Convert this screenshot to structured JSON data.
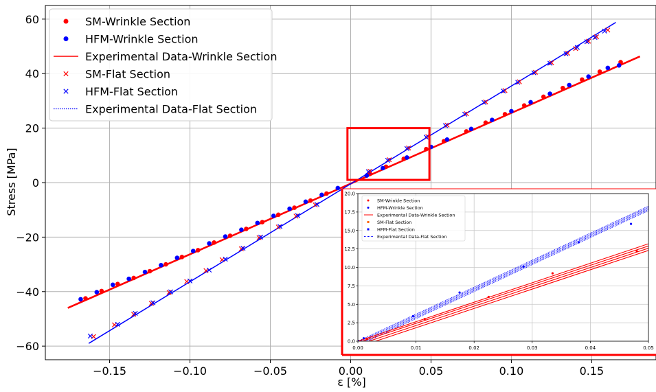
{
  "chart_data": [
    {
      "type": "scatter",
      "title": "",
      "xlabel": "ε [%]",
      "ylabel": "Stress [MPa]",
      "xlim": [
        -0.19,
        0.19
      ],
      "ylim": [
        -65,
        65
      ],
      "xticks": [
        -0.15,
        -0.1,
        -0.05,
        0.0,
        0.05,
        0.1,
        0.15
      ],
      "xtick_labels": [
        "−0.15",
        "−0.10",
        "−0.05",
        "0.00",
        "0.05",
        "0.10",
        "0.15"
      ],
      "yticks": [
        -60,
        -40,
        -20,
        0,
        20,
        40,
        60
      ],
      "ytick_labels": [
        "−60",
        "−40",
        "−20",
        "0",
        "20",
        "40",
        "60"
      ],
      "grid": true,
      "legend_position": "top-left",
      "legend": [
        "SM-Wrinkle Section",
        "HFM-Wrinkle Section",
        "Experimental Data-Wrinkle Section",
        "SM-Flat Section",
        "HFM-Flat Section",
        "Experimental Data-Flat Section"
      ],
      "colors": {
        "red": "#ff0000",
        "blue": "#0000ff",
        "grid": "#b0b0b0",
        "zoom_box": "#ff0000"
      },
      "series": [
        {
          "name": "SM-Wrinkle Section",
          "marker": "dot",
          "color": "#ff0000",
          "x": [
            -0.165,
            -0.155,
            -0.145,
            -0.135,
            -0.125,
            -0.115,
            -0.105,
            -0.095,
            -0.085,
            -0.075,
            -0.065,
            -0.055,
            -0.045,
            -0.035,
            -0.025,
            -0.015,
            0.012,
            0.022,
            0.033,
            0.047,
            0.058,
            0.072,
            0.084,
            0.096,
            0.108,
            0.12,
            0.132,
            0.144,
            0.155,
            0.168
          ],
          "y": [
            -42.5,
            -39.8,
            -37.2,
            -35.0,
            -32.5,
            -30.0,
            -27.3,
            -24.8,
            -22.0,
            -19.5,
            -17.0,
            -14.5,
            -11.8,
            -9.2,
            -6.6,
            -4.0,
            3.2,
            5.8,
            8.7,
            12.3,
            15.2,
            18.8,
            22.0,
            25.1,
            28.3,
            31.5,
            34.7,
            37.8,
            40.7,
            44.2
          ]
        },
        {
          "name": "HFM-Wrinkle Section",
          "marker": "dot",
          "color": "#0000ff",
          "x": [
            -0.168,
            -0.158,
            -0.148,
            -0.138,
            -0.128,
            -0.118,
            -0.108,
            -0.098,
            -0.088,
            -0.078,
            -0.068,
            -0.058,
            -0.048,
            -0.038,
            -0.028,
            -0.018,
            -0.008,
            0.01,
            0.02,
            0.035,
            0.05,
            0.06,
            0.075,
            0.088,
            0.1,
            0.112,
            0.124,
            0.136,
            0.148,
            0.16,
            0.167
          ],
          "y": [
            -42.8,
            -40.2,
            -37.5,
            -35.3,
            -32.8,
            -30.3,
            -27.6,
            -25.1,
            -22.3,
            -19.8,
            -17.3,
            -14.8,
            -12.2,
            -9.6,
            -7.0,
            -4.5,
            -2.0,
            2.6,
            5.3,
            9.2,
            13.1,
            15.8,
            19.7,
            23.0,
            26.2,
            29.5,
            32.6,
            35.8,
            38.9,
            42.1,
            43.0
          ]
        },
        {
          "name": "Experimental Data-Wrinkle Section",
          "marker": "line",
          "color": "#ff0000",
          "x": [
            -0.176,
            0.18
          ],
          "y": [
            -46.0,
            46.3
          ]
        },
        {
          "name": "SM-Flat Section",
          "marker": "x",
          "color": "#ff0000",
          "x": [
            -0.16,
            -0.147,
            -0.135,
            -0.124,
            -0.113,
            -0.102,
            -0.09,
            -0.08,
            -0.068,
            -0.057,
            -0.045,
            -0.034,
            -0.022,
            0.012,
            0.024,
            0.036,
            0.048,
            0.06,
            0.072,
            0.084,
            0.096,
            0.105,
            0.115,
            0.125,
            0.135,
            0.14,
            0.148,
            0.153,
            0.16
          ],
          "y": [
            -56.5,
            -52.2,
            -48.3,
            -44.3,
            -40.3,
            -36.3,
            -32.3,
            -28.3,
            -24.3,
            -20.2,
            -16.3,
            -12.3,
            -8.2,
            4.2,
            8.4,
            12.7,
            16.9,
            21.1,
            25.3,
            29.6,
            33.8,
            37.0,
            40.5,
            44.0,
            47.5,
            49.2,
            51.9,
            53.5,
            56.0
          ]
        },
        {
          "name": "HFM-Flat Section",
          "marker": "x",
          "color": "#0000ff",
          "x": [
            -0.162,
            -0.145,
            -0.134,
            -0.123,
            -0.112,
            -0.1,
            -0.088,
            -0.078,
            -0.067,
            -0.056,
            -0.044,
            -0.033,
            -0.021,
            0.011,
            0.023,
            0.035,
            0.047,
            0.059,
            0.071,
            0.083,
            0.095,
            0.104,
            0.114,
            0.124,
            0.134,
            0.141,
            0.147,
            0.152,
            0.158
          ],
          "y": [
            -56.3,
            -52.0,
            -48.0,
            -44.1,
            -40.1,
            -36.1,
            -32.1,
            -28.1,
            -24.1,
            -20.0,
            -16.1,
            -12.1,
            -8.0,
            4.0,
            8.2,
            12.5,
            16.7,
            20.9,
            25.1,
            29.4,
            33.6,
            36.8,
            40.3,
            43.8,
            47.3,
            49.6,
            51.7,
            53.3,
            55.6
          ]
        },
        {
          "name": "Experimental Data-Flat Section",
          "marker": "dotted-line",
          "color": "#0000ff",
          "x": [
            -0.163,
            0.165
          ],
          "y": [
            -59.0,
            58.8
          ]
        }
      ],
      "zoom_box": {
        "x": [
          -0.002,
          0.049
        ],
        "y": [
          1.0,
          20.0
        ]
      }
    },
    {
      "type": "line",
      "title": "",
      "xlim": [
        0.0,
        0.05
      ],
      "ylim": [
        0.0,
        20.0
      ],
      "xticks": [
        0.0,
        0.01,
        0.02,
        0.03,
        0.04,
        0.05
      ],
      "xtick_labels": [
        "0.00",
        "0.01",
        "0.02",
        "0.03",
        "0.04",
        "0.05"
      ],
      "yticks": [
        0.0,
        2.5,
        5.0,
        7.5,
        10.0,
        12.5,
        15.0,
        17.5,
        20.0
      ],
      "ytick_labels": [
        "0.0",
        "2.5",
        "5.0",
        "7.5",
        "10.0",
        "12.5",
        "15.0",
        "17.5",
        "20.0"
      ],
      "grid": true,
      "legend_position": "top-left",
      "legend": [
        "SM-Wrinkle Section",
        "HFM-Wrinkle Section",
        "Experimental Data-Wrinkle Section",
        "SM-Flat Section",
        "HFM-Flat Section",
        "Experimental Data-Flat Section"
      ],
      "red_lines": [
        {
          "x": [
            0.0,
            0.05
          ],
          "y": [
            0.0,
            13.2
          ]
        },
        {
          "x": [
            0.0,
            0.05
          ],
          "y": [
            -0.2,
            12.9
          ]
        },
        {
          "x": [
            0.0,
            0.05
          ],
          "y": [
            -0.5,
            12.6
          ]
        },
        {
          "x": [
            0.0,
            0.05
          ],
          "y": [
            -0.8,
            12.3
          ]
        }
      ],
      "blue_lines": [
        {
          "x": [
            0.0,
            0.05
          ],
          "y": [
            0.0,
            18.3
          ]
        },
        {
          "x": [
            0.0,
            0.05
          ],
          "y": [
            -0.15,
            18.15
          ]
        },
        {
          "x": [
            0.0,
            0.05
          ],
          "y": [
            -0.3,
            18.0
          ]
        },
        {
          "x": [
            0.0,
            0.05
          ],
          "y": [
            -0.45,
            17.85
          ]
        },
        {
          "x": [
            0.0,
            0.05
          ],
          "y": [
            -0.6,
            17.7
          ]
        }
      ],
      "red_points": {
        "x": [
          0.0,
          0.0015,
          0.0115,
          0.0225,
          0.0335,
          0.048
        ],
        "y": [
          0.05,
          0.3,
          3.0,
          6.0,
          9.2,
          12.2
        ]
      },
      "blue_points": {
        "x": [
          0.0,
          0.001,
          0.0095,
          0.0175,
          0.0285,
          0.038,
          0.047
        ],
        "y": [
          0.05,
          0.4,
          3.4,
          6.6,
          10.1,
          13.4,
          15.9
        ]
      }
    }
  ]
}
